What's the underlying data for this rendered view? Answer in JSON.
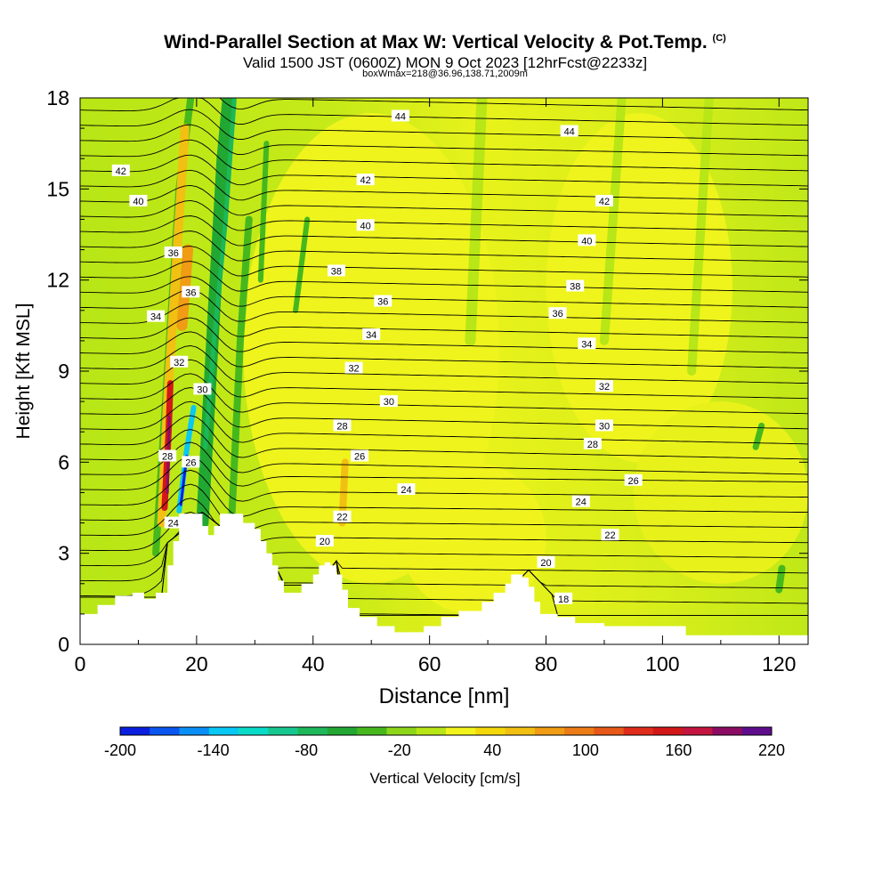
{
  "chart_data": {
    "type": "heatmap",
    "title": "Wind-Parallel Section at Max W: Vertical Velocity & Pot.Temp.",
    "title_mark": "(C)",
    "subtitle": "Valid 1500 JST (0600Z) MON 9 Oct 2023 [12hrFcst@2233z]",
    "subtitle2": "boxWmax=218@36.96,138.71,2009m",
    "xlabel": "Distance [nm]",
    "ylabel": "Height [Kft MSL]",
    "xlim": [
      0,
      125
    ],
    "ylim": [
      0,
      18
    ],
    "x_ticks": [
      "0",
      "20",
      "40",
      "60",
      "80",
      "100",
      "120"
    ],
    "y_ticks": [
      "0",
      "3",
      "6",
      "9",
      "12",
      "15",
      "18"
    ],
    "colorbar": {
      "label": "Vertical Velocity [cm/s]",
      "range": [
        -200,
        220
      ],
      "tick_labels": [
        "-200",
        "-140",
        "-80",
        "-20",
        "40",
        "100",
        "160",
        "220"
      ],
      "colors": [
        "#0a1fe0",
        "#0b55f0",
        "#0a8ff6",
        "#08c8f4",
        "#08dcc8",
        "#16c890",
        "#1cb85a",
        "#22a832",
        "#46b81e",
        "#8ed61a",
        "#b8e616",
        "#f2f41c",
        "#f4d80c",
        "#f2c012",
        "#f09c14",
        "#ec7c16",
        "#e85818",
        "#e02c1a",
        "#d21818",
        "#c41440",
        "#8c0c64",
        "#5e0e8c"
      ]
    },
    "isentrope_labels": [
      {
        "x": 55,
        "y": 17.4,
        "text": "44"
      },
      {
        "x": 84,
        "y": 16.9,
        "text": "44"
      },
      {
        "x": 7,
        "y": 15.6,
        "text": "42"
      },
      {
        "x": 49,
        "y": 15.3,
        "text": "42"
      },
      {
        "x": 90,
        "y": 14.6,
        "text": "42"
      },
      {
        "x": 10,
        "y": 14.6,
        "text": "40"
      },
      {
        "x": 49,
        "y": 13.8,
        "text": "40"
      },
      {
        "x": 87,
        "y": 13.3,
        "text": "40"
      },
      {
        "x": 16,
        "y": 12.9,
        "text": "36"
      },
      {
        "x": 44,
        "y": 12.3,
        "text": "38"
      },
      {
        "x": 85,
        "y": 11.8,
        "text": "38"
      },
      {
        "x": 19,
        "y": 11.6,
        "text": "36"
      },
      {
        "x": 52,
        "y": 11.3,
        "text": "36"
      },
      {
        "x": 82,
        "y": 10.9,
        "text": "36"
      },
      {
        "x": 13,
        "y": 10.8,
        "text": "34"
      },
      {
        "x": 50,
        "y": 10.2,
        "text": "34"
      },
      {
        "x": 87,
        "y": 9.9,
        "text": "34"
      },
      {
        "x": 17,
        "y": 9.3,
        "text": "32"
      },
      {
        "x": 47,
        "y": 9.1,
        "text": "32"
      },
      {
        "x": 90,
        "y": 8.5,
        "text": "32"
      },
      {
        "x": 21,
        "y": 8.4,
        "text": "30"
      },
      {
        "x": 53,
        "y": 8.0,
        "text": "30"
      },
      {
        "x": 90,
        "y": 7.2,
        "text": "30"
      },
      {
        "x": 45,
        "y": 7.2,
        "text": "28"
      },
      {
        "x": 88,
        "y": 6.6,
        "text": "28"
      },
      {
        "x": 15,
        "y": 6.2,
        "text": "28"
      },
      {
        "x": 48,
        "y": 6.2,
        "text": "26"
      },
      {
        "x": 19,
        "y": 6.0,
        "text": "26"
      },
      {
        "x": 95,
        "y": 5.4,
        "text": "26"
      },
      {
        "x": 56,
        "y": 5.1,
        "text": "24"
      },
      {
        "x": 86,
        "y": 4.7,
        "text": "24"
      },
      {
        "x": 16,
        "y": 4.0,
        "text": "24"
      },
      {
        "x": 45,
        "y": 4.2,
        "text": "22"
      },
      {
        "x": 91,
        "y": 3.6,
        "text": "22"
      },
      {
        "x": 42,
        "y": 3.4,
        "text": "20"
      },
      {
        "x": 80,
        "y": 2.7,
        "text": "20"
      },
      {
        "x": 83,
        "y": 1.5,
        "text": "18"
      }
    ]
  }
}
